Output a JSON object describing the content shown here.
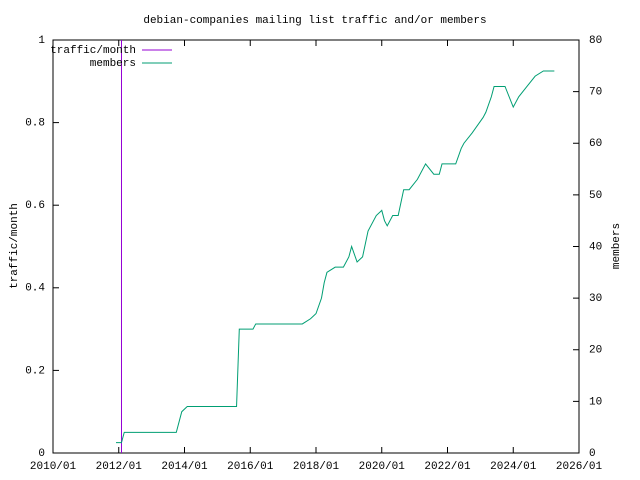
{
  "chart_data": {
    "type": "line",
    "title": "debian-companies mailing list traffic and/or members",
    "y_label": "traffic/month",
    "y2_label": "members",
    "xlim": [
      "2010/01",
      "2026/01"
    ],
    "xticks": [
      "2010/01",
      "2012/01",
      "2014/01",
      "2016/01",
      "2018/01",
      "2020/01",
      "2022/01",
      "2024/01",
      "2026/01"
    ],
    "ylim": [
      0,
      1
    ],
    "yticks": [
      0,
      0.2,
      0.4,
      0.6,
      0.8,
      1
    ],
    "y2lim": [
      0,
      80
    ],
    "y2ticks": [
      0,
      10,
      20,
      30,
      40,
      50,
      60,
      70,
      80
    ],
    "legend": "top-left",
    "series": [
      {
        "name": "traffic/month",
        "color": "#9400d3",
        "x": [
          "2012/02",
          "2012/02"
        ],
        "values": [
          0,
          1
        ]
      },
      {
        "name": "members",
        "color": "#009e73",
        "axis": "y2",
        "x": [
          "2011/12",
          "2012/02",
          "2012/03",
          "2013/10",
          "2013/12",
          "2014/02",
          "2015/08",
          "2015/09",
          "2016/02",
          "2016/03",
          "2017/08",
          "2017/11",
          "2018/01",
          "2018/03",
          "2018/04",
          "2018/05",
          "2018/08",
          "2018/11",
          "2019/01",
          "2019/02",
          "2019/04",
          "2019/06",
          "2019/08",
          "2019/11",
          "2020/01",
          "2020/02",
          "2020/03",
          "2020/05",
          "2020/07",
          "2020/09",
          "2020/11",
          "2021/02",
          "2021/05",
          "2021/08",
          "2021/10",
          "2021/11",
          "2022/04",
          "2022/06",
          "2022/07",
          "2022/10",
          "2023/02",
          "2023/03",
          "2023/05",
          "2023/06",
          "2023/10",
          "2024/01",
          "2024/03",
          "2024/06",
          "2024/09",
          "2024/12",
          "2025/04"
        ],
        "values": [
          2,
          2,
          4,
          4,
          8,
          9,
          9,
          24,
          24,
          25,
          25,
          26,
          27,
          30,
          33,
          35,
          36,
          36,
          38,
          40,
          37,
          38,
          43,
          46,
          47,
          45,
          44,
          46,
          46,
          51,
          51,
          53,
          56,
          54,
          54,
          56,
          56,
          59,
          60,
          62,
          65,
          66,
          69,
          71,
          71,
          67,
          69,
          71,
          73,
          74,
          74
        ]
      }
    ]
  }
}
